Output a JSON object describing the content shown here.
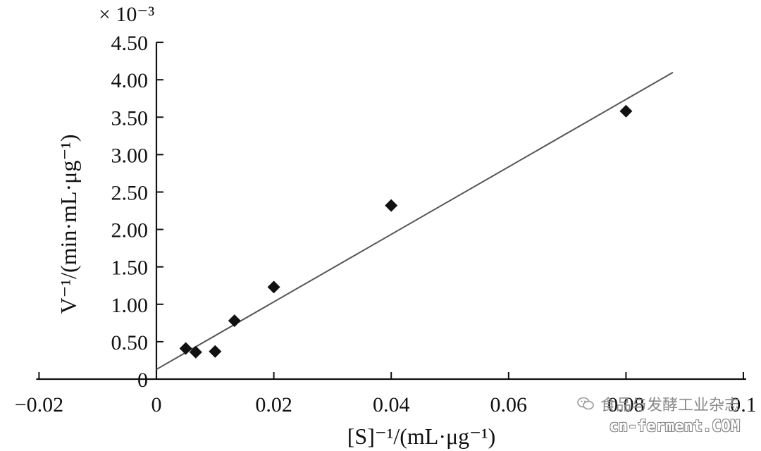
{
  "chart_data": {
    "type": "scatter",
    "title": "",
    "xlabel": "[S]⁻¹/(mL·μg⁻¹)",
    "ylabel": "V⁻¹/(min·mL·μg⁻¹)",
    "y_multiplier_label": "× 10⁻³",
    "xlim": [
      -0.02,
      0.1
    ],
    "ylim": [
      0,
      4.5
    ],
    "x_ticks": [
      -0.02,
      0,
      0.02,
      0.04,
      0.06,
      0.08,
      0.1
    ],
    "x_tick_labels": [
      "−0.02",
      "0",
      "0.02",
      "0.04",
      "0.06",
      "0.08",
      "0.1"
    ],
    "y_ticks": [
      0,
      0.5,
      1.0,
      1.5,
      2.0,
      2.5,
      3.0,
      3.5,
      4.0,
      4.5
    ],
    "y_tick_labels": [
      "0",
      "0.50",
      "1.00",
      "1.50",
      "2.00",
      "2.50",
      "3.00",
      "3.50",
      "4.00",
      "4.50"
    ],
    "grid": false,
    "series": [
      {
        "marker": "diamond",
        "color": "#111111",
        "x": [
          0.005,
          0.0067,
          0.01,
          0.0133,
          0.02,
          0.04,
          0.08
        ],
        "y": [
          0.41,
          0.36,
          0.37,
          0.78,
          1.23,
          2.32,
          3.58
        ]
      }
    ],
    "trendline": {
      "type": "linear",
      "color": "#555555",
      "x_range": [
        0,
        0.088
      ],
      "slope": 45.1,
      "intercept": 0.13
    }
  },
  "watermark": {
    "name": "食品与发酵工业杂志",
    "site": "cn-ferment.COM"
  }
}
